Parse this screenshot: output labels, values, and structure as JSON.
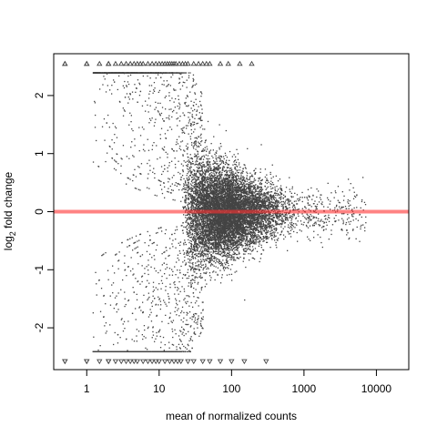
{
  "chart_data": {
    "type": "scatter",
    "title": "",
    "xlabel": "mean of normalized counts",
    "ylabel_main": "log",
    "ylabel_sub": "2",
    "ylabel_tail": " fold change",
    "x_scale": "log",
    "xlim": [
      0.35,
      28000
    ],
    "ylim": [
      -2.72,
      2.72
    ],
    "x_ticks": [
      {
        "value": 1,
        "label": "1"
      },
      {
        "value": 10,
        "label": "10"
      },
      {
        "value": 100,
        "label": "100"
      },
      {
        "value": 1000,
        "label": "1000"
      },
      {
        "value": 10000,
        "label": "10000"
      }
    ],
    "y_ticks": [
      {
        "value": -2,
        "label": "-2"
      },
      {
        "value": -1,
        "label": "-1"
      },
      {
        "value": 0,
        "label": "0"
      },
      {
        "value": 1,
        "label": "1"
      },
      {
        "value": 2,
        "label": "2"
      }
    ],
    "grid": false,
    "reference_line": {
      "y": 0,
      "color": "#ff3030"
    },
    "point_color": "#444444",
    "outliers_top_x": [
      0.5,
      0.5,
      1,
      1,
      1.5,
      2,
      2,
      2.5,
      3,
      3.5,
      4,
      4.5,
      5,
      5.5,
      6,
      7,
      8,
      9,
      10,
      11,
      12,
      13,
      14,
      15,
      16,
      17,
      19,
      21,
      23,
      25,
      30,
      35,
      40,
      45,
      50,
      70,
      90,
      130,
      190
    ],
    "outliers_bottom_x": [
      0.5,
      0.5,
      1,
      1,
      1.5,
      2,
      2,
      2.5,
      3,
      3.5,
      4,
      4.5,
      5,
      6,
      7,
      8,
      9,
      10,
      12,
      14,
      16,
      18,
      20,
      25,
      30,
      40,
      50,
      70,
      100,
      150,
      300
    ],
    "outlier_y_top": 2.55,
    "outlier_y_bottom": -2.58
  }
}
